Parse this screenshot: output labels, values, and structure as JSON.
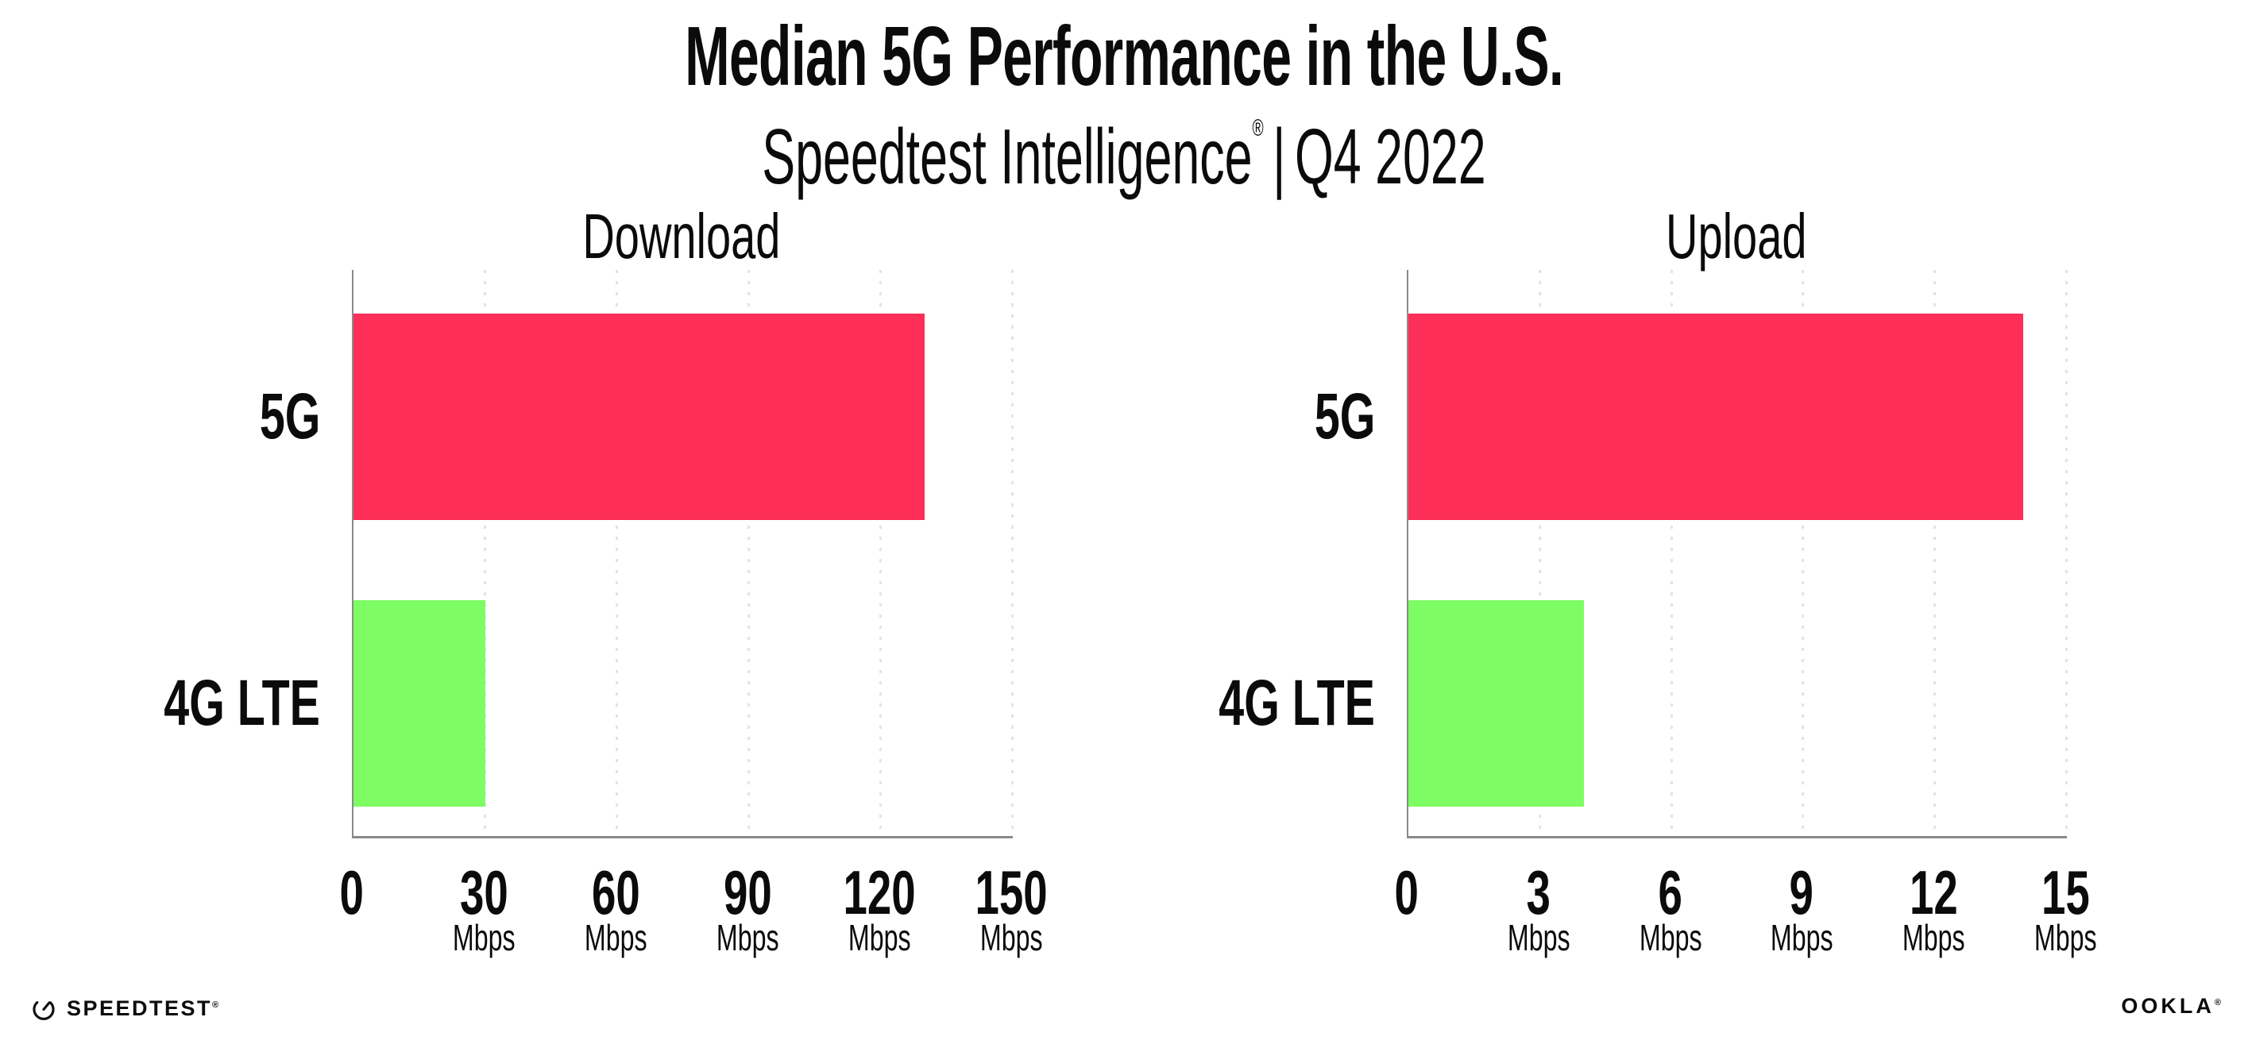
{
  "header": {
    "title": "Median 5G Performance in the U.S.",
    "subtitle_brand": "Speedtest Intelligence",
    "subtitle_reg": "®",
    "subtitle_sep": "|",
    "subtitle_period": "Q4 2022"
  },
  "chart_data": [
    {
      "type": "bar",
      "orientation": "horizontal",
      "title": "Download",
      "categories": [
        "5G",
        "4G LTE"
      ],
      "values": [
        130,
        30
      ],
      "unit": "Mbps",
      "xlim": [
        0,
        150
      ],
      "xticks": [
        0,
        30,
        60,
        90,
        120,
        150
      ],
      "grid": "dotted-vertical-gridlines",
      "legend": "none",
      "bar_colors": [
        "#fd2e58",
        "#7dfc64"
      ]
    },
    {
      "type": "bar",
      "orientation": "horizontal",
      "title": "Upload",
      "categories": [
        "5G",
        "4G LTE"
      ],
      "values": [
        14,
        4
      ],
      "unit": "Mbps",
      "xlim": [
        0,
        15
      ],
      "xticks": [
        0,
        3,
        6,
        9,
        12,
        15
      ],
      "grid": "dotted-vertical-gridlines",
      "legend": "none",
      "bar_colors": [
        "#fd2e58",
        "#7dfc64"
      ]
    }
  ],
  "colors": {
    "bar_5g": "#fd2e58",
    "bar_4g_lte": "#7dfc64",
    "axis": "#8a8a8a",
    "gridline": "#e2e2ee",
    "text": "#0b0b0b"
  },
  "footer": {
    "speedtest_label": "SPEEDTEST",
    "speedtest_reg": "®",
    "ookla_label": "OOKLA",
    "ookla_reg": "®"
  }
}
